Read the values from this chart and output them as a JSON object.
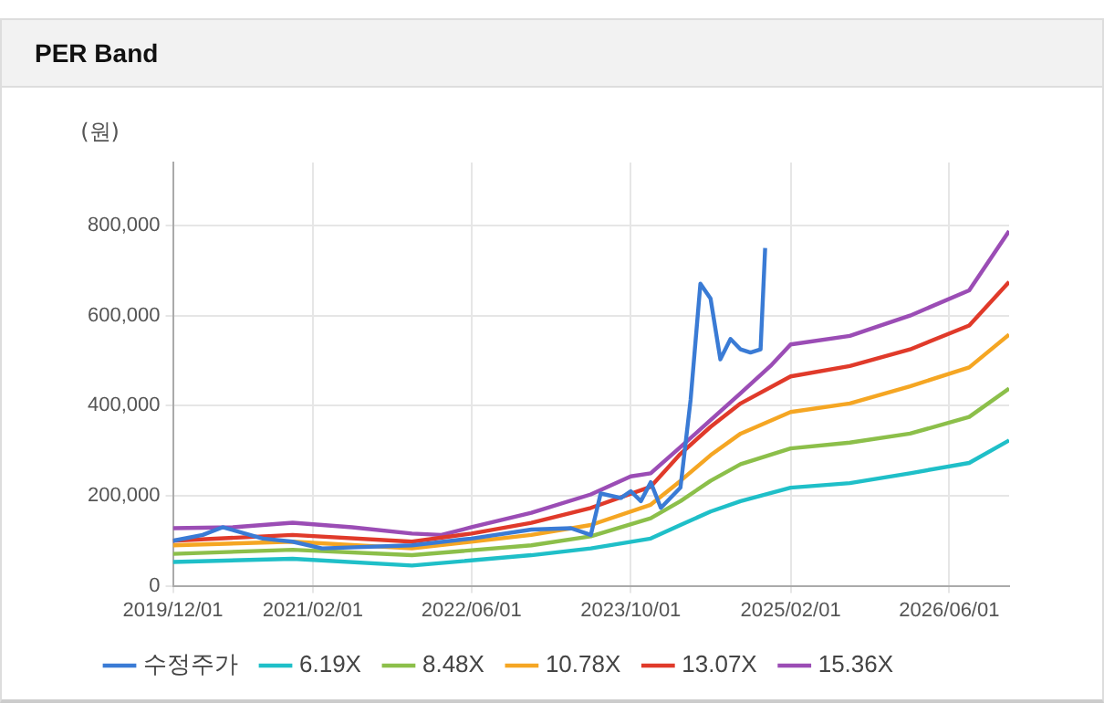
{
  "chart_data": {
    "type": "line",
    "title": "PER Band",
    "ylabel": "(원)",
    "xlim": [
      "2019-12-01",
      "2026-12-01"
    ],
    "ylim": [
      0,
      940000
    ],
    "xticks": [
      {
        "value": "2019-12-01",
        "label": "2019/12/01"
      },
      {
        "value": "2021-02-01",
        "label": "2021/02/01"
      },
      {
        "value": "2022-06-01",
        "label": "2022/06/01"
      },
      {
        "value": "2023-10-01",
        "label": "2023/10/01"
      },
      {
        "value": "2025-02-01",
        "label": "2025/02/01"
      },
      {
        "value": "2026-06-01",
        "label": "2026/06/01"
      }
    ],
    "yticks": [
      {
        "value": 0,
        "label": "0"
      },
      {
        "value": 200000,
        "label": "200,000"
      },
      {
        "value": 400000,
        "label": "400,000"
      },
      {
        "value": 600000,
        "label": "600,000"
      },
      {
        "value": 800000,
        "label": "800,000"
      }
    ],
    "grid": true,
    "legend": "bottom",
    "marker": "none",
    "line_style": "solid",
    "series": [
      {
        "name": "수정주가",
        "color": "#3a7bd5",
        "x": [
          "2019-12-01",
          "2020-03-01",
          "2020-05-01",
          "2020-09-01",
          "2020-12-01",
          "2021-03-01",
          "2021-12-01",
          "2022-06-01",
          "2022-12-01",
          "2023-04-01",
          "2023-06-01",
          "2023-07-01",
          "2023-09-01",
          "2023-10-01",
          "2023-11-01",
          "2023-12-01",
          "2024-01-01",
          "2024-03-01",
          "2024-04-01",
          "2024-05-01",
          "2024-06-01",
          "2024-07-01",
          "2024-08-01",
          "2024-09-01",
          "2024-10-01",
          "2024-11-01",
          "2024-11-15"
        ],
        "values": [
          100000,
          113000,
          130000,
          105000,
          98000,
          83000,
          90000,
          105000,
          125000,
          128000,
          113000,
          205000,
          195000,
          210000,
          188000,
          230000,
          173000,
          218000,
          413000,
          671000,
          638000,
          503000,
          548000,
          525000,
          518000,
          525000,
          750000
        ]
      },
      {
        "name": "6.19X",
        "color": "#1fbfc8",
        "x": [
          "2019-12-01",
          "2020-12-01",
          "2021-12-01",
          "2022-12-01",
          "2023-06-01",
          "2023-12-01",
          "2024-03-01",
          "2024-06-01",
          "2024-09-01",
          "2025-02-01",
          "2025-08-01",
          "2026-02-01",
          "2026-08-01",
          "2026-12-01"
        ],
        "values": [
          53000,
          60000,
          45000,
          68000,
          83000,
          105000,
          135000,
          165000,
          188000,
          218000,
          228000,
          250000,
          273000,
          323000
        ]
      },
      {
        "name": "8.48X",
        "color": "#8cbf4a",
        "x": [
          "2019-12-01",
          "2020-12-01",
          "2021-12-01",
          "2022-12-01",
          "2023-06-01",
          "2023-12-01",
          "2024-03-01",
          "2024-06-01",
          "2024-09-01",
          "2025-02-01",
          "2025-08-01",
          "2026-02-01",
          "2026-08-01",
          "2026-12-01"
        ],
        "values": [
          71000,
          80000,
          68000,
          90000,
          110000,
          150000,
          188000,
          233000,
          270000,
          305000,
          318000,
          338000,
          375000,
          438000
        ]
      },
      {
        "name": "10.78X",
        "color": "#f5a623",
        "x": [
          "2019-12-01",
          "2020-12-01",
          "2021-12-01",
          "2022-12-01",
          "2023-06-01",
          "2023-12-01",
          "2024-03-01",
          "2024-06-01",
          "2024-09-01",
          "2025-02-01",
          "2025-08-01",
          "2026-02-01",
          "2026-08-01",
          "2026-12-01"
        ],
        "values": [
          90000,
          98000,
          83000,
          113000,
          135000,
          180000,
          233000,
          290000,
          338000,
          386000,
          405000,
          443000,
          485000,
          558000
        ]
      },
      {
        "name": "13.07X",
        "color": "#e03a2a",
        "x": [
          "2019-12-01",
          "2020-12-01",
          "2021-12-01",
          "2022-06-01",
          "2022-12-01",
          "2023-06-01",
          "2023-12-01",
          "2024-03-01",
          "2024-06-01",
          "2024-09-01",
          "2025-02-01",
          "2025-08-01",
          "2026-02-01",
          "2026-08-01",
          "2026-12-01"
        ],
        "values": [
          100000,
          113000,
          98000,
          116000,
          140000,
          173000,
          220000,
          293000,
          353000,
          405000,
          465000,
          488000,
          525000,
          578000,
          675000
        ]
      },
      {
        "name": "15.36X",
        "color": "#9b4db5",
        "x": [
          "2019-12-01",
          "2020-06-01",
          "2020-12-01",
          "2021-06-01",
          "2021-12-01",
          "2022-03-01",
          "2022-06-01",
          "2022-12-01",
          "2023-06-01",
          "2023-10-01",
          "2023-12-01",
          "2024-03-01",
          "2024-06-01",
          "2024-09-01",
          "2024-12-01",
          "2025-02-01",
          "2025-08-01",
          "2026-02-01",
          "2026-08-01",
          "2026-12-01"
        ],
        "values": [
          128000,
          130000,
          140000,
          130000,
          116000,
          113000,
          130000,
          162000,
          203000,
          243000,
          250000,
          308000,
          368000,
          428000,
          488000,
          536000,
          555000,
          600000,
          656000,
          788000
        ]
      }
    ]
  }
}
